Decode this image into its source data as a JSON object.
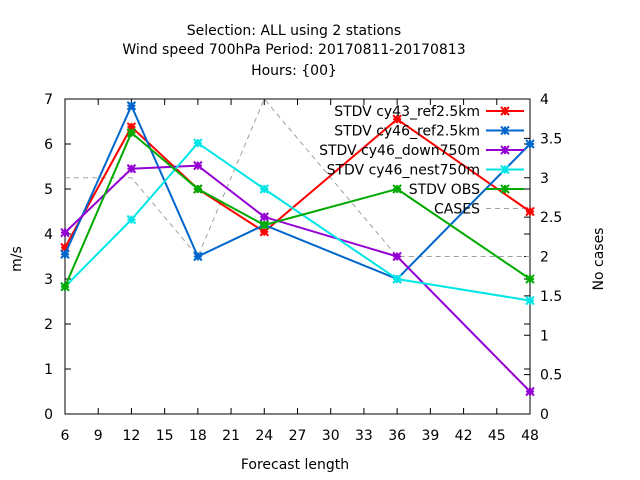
{
  "chart_data": {
    "type": "line",
    "title_lines": [
      "Selection: ALL using     2 stations",
      "Wind speed 700hPa   Period: 20170811-20170813",
      "Hours: {00}"
    ],
    "xlabel": "Forecast length",
    "ylabel": "m/s",
    "y2label": "No cases",
    "xlim": [
      6,
      48
    ],
    "ylim": [
      0,
      7
    ],
    "y2lim": [
      0,
      4
    ],
    "xticks": [
      6,
      9,
      12,
      15,
      18,
      21,
      24,
      27,
      30,
      33,
      36,
      39,
      42,
      45,
      48
    ],
    "yticks": [
      0,
      1,
      2,
      3,
      4,
      5,
      6,
      7
    ],
    "y2ticks": [
      0,
      0.5,
      1,
      1.5,
      2,
      2.5,
      3,
      3.5,
      4
    ],
    "legend_position": "top-right",
    "grid": false,
    "x": [
      6,
      12,
      18,
      24,
      36,
      48
    ],
    "series": [
      {
        "name": "STDV cy43_ref2.5km",
        "color": "#ff0000",
        "marker": "x",
        "values": [
          3.7,
          6.38,
          5.0,
          4.05,
          6.55,
          4.5
        ]
      },
      {
        "name": "STDV cy46_ref2.5km",
        "color": "#0066cc",
        "marker": "x",
        "values": [
          3.55,
          6.85,
          3.5,
          4.2,
          3.0,
          6.0
        ]
      },
      {
        "name": "STDV cy46_down750m",
        "color": "#9400d3",
        "marker": "x",
        "values": [
          4.03,
          5.45,
          5.52,
          4.38,
          3.5,
          0.5
        ]
      },
      {
        "name": "STDV cy46_nest750m",
        "color": "#00e6e6",
        "marker": "x",
        "values": [
          2.83,
          4.32,
          6.02,
          5.0,
          3.0,
          2.52
        ]
      },
      {
        "name": "STDV OBS",
        "color": "#00aa00",
        "marker": "x",
        "values": [
          2.83,
          6.25,
          5.0,
          4.2,
          5.0,
          3.0
        ]
      },
      {
        "name": "CASES",
        "color": "#a0a0a0",
        "dashed": true,
        "axis": "y2",
        "values": [
          3.0,
          3.0,
          2.0,
          4.0,
          2.0,
          2.0
        ]
      }
    ]
  }
}
